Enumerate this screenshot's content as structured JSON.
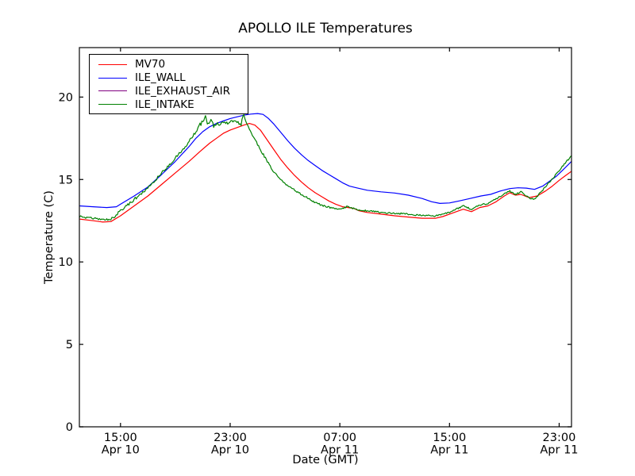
{
  "chart_data": {
    "type": "line",
    "title": "APOLLO ILE Temperatures",
    "xlabel": "Date (GMT)",
    "ylabel": "Temperature (C)",
    "grid": false,
    "legend_position": "upper left",
    "ylim": [
      0,
      23
    ],
    "y_ticks": [
      0,
      5,
      10,
      15,
      20
    ],
    "x_unit": "hours since Apr 10 12:00 GMT",
    "xlim": [
      0,
      35.9
    ],
    "x_ticks": [
      {
        "t": 3,
        "time": "15:00",
        "date": "Apr 10"
      },
      {
        "t": 11,
        "time": "23:00",
        "date": "Apr 10"
      },
      {
        "t": 19,
        "time": "07:00",
        "date": "Apr 11"
      },
      {
        "t": 27,
        "time": "15:00",
        "date": "Apr 11"
      },
      {
        "t": 35,
        "time": "23:00",
        "date": "Apr 11"
      }
    ],
    "series": [
      {
        "name": "MV70",
        "color": "#ff0000",
        "noisy": false,
        "points": [
          [
            0,
            12.6
          ],
          [
            1,
            12.5
          ],
          [
            1.7,
            12.42
          ],
          [
            2.3,
            12.45
          ],
          [
            3,
            12.8
          ],
          [
            4,
            13.4
          ],
          [
            5,
            14.0
          ],
          [
            6,
            14.7
          ],
          [
            7,
            15.4
          ],
          [
            8,
            16.1
          ],
          [
            8.8,
            16.7
          ],
          [
            9.5,
            17.2
          ],
          [
            10,
            17.5
          ],
          [
            10.5,
            17.8
          ],
          [
            11,
            18.0
          ],
          [
            11.5,
            18.15
          ],
          [
            12,
            18.3
          ],
          [
            12.4,
            18.4
          ],
          [
            12.8,
            18.3
          ],
          [
            13.2,
            18.0
          ],
          [
            13.7,
            17.4
          ],
          [
            14.2,
            16.8
          ],
          [
            14.7,
            16.2
          ],
          [
            15.2,
            15.7
          ],
          [
            15.7,
            15.25
          ],
          [
            16.2,
            14.85
          ],
          [
            16.7,
            14.5
          ],
          [
            17.2,
            14.2
          ],
          [
            17.7,
            13.95
          ],
          [
            18.2,
            13.7
          ],
          [
            18.7,
            13.5
          ],
          [
            19.2,
            13.35
          ],
          [
            19.6,
            13.3
          ],
          [
            20,
            13.25
          ],
          [
            20.4,
            13.1
          ],
          [
            21,
            13.0
          ],
          [
            22,
            12.9
          ],
          [
            23,
            12.8
          ],
          [
            24,
            12.72
          ],
          [
            25,
            12.65
          ],
          [
            26,
            12.65
          ],
          [
            26.5,
            12.75
          ],
          [
            27,
            12.9
          ],
          [
            27.5,
            13.05
          ],
          [
            28,
            13.2
          ],
          [
            28.6,
            13.05
          ],
          [
            29.2,
            13.3
          ],
          [
            29.8,
            13.4
          ],
          [
            30.4,
            13.65
          ],
          [
            31,
            14.0
          ],
          [
            31.4,
            14.2
          ],
          [
            31.8,
            14.05
          ],
          [
            32.2,
            14.1
          ],
          [
            32.8,
            13.9
          ],
          [
            33.4,
            14.0
          ],
          [
            34,
            14.3
          ],
          [
            34.5,
            14.6
          ],
          [
            35,
            14.95
          ],
          [
            35.4,
            15.2
          ],
          [
            35.9,
            15.5
          ]
        ]
      },
      {
        "name": "ILE_WALL",
        "color": "#0000ff",
        "noisy": false,
        "points": [
          [
            0,
            13.4
          ],
          [
            1,
            13.35
          ],
          [
            2,
            13.3
          ],
          [
            2.7,
            13.35
          ],
          [
            3,
            13.5
          ],
          [
            4,
            14.0
          ],
          [
            5,
            14.55
          ],
          [
            6,
            15.3
          ],
          [
            7,
            16.1
          ],
          [
            8,
            17.0
          ],
          [
            8.5,
            17.5
          ],
          [
            9,
            17.9
          ],
          [
            9.5,
            18.2
          ],
          [
            10,
            18.4
          ],
          [
            10.5,
            18.55
          ],
          [
            11,
            18.7
          ],
          [
            11.5,
            18.8
          ],
          [
            12,
            18.9
          ],
          [
            12.5,
            18.97
          ],
          [
            13,
            19.0
          ],
          [
            13.4,
            18.95
          ],
          [
            13.8,
            18.7
          ],
          [
            14.2,
            18.35
          ],
          [
            14.7,
            17.85
          ],
          [
            15.2,
            17.35
          ],
          [
            15.7,
            16.9
          ],
          [
            16.2,
            16.5
          ],
          [
            16.7,
            16.15
          ],
          [
            17.2,
            15.85
          ],
          [
            17.7,
            15.55
          ],
          [
            18.2,
            15.3
          ],
          [
            18.7,
            15.05
          ],
          [
            19.2,
            14.8
          ],
          [
            19.7,
            14.6
          ],
          [
            20.2,
            14.5
          ],
          [
            21,
            14.35
          ],
          [
            22,
            14.25
          ],
          [
            23,
            14.18
          ],
          [
            24,
            14.05
          ],
          [
            25,
            13.85
          ],
          [
            25.7,
            13.65
          ],
          [
            26.3,
            13.55
          ],
          [
            27,
            13.58
          ],
          [
            27.7,
            13.7
          ],
          [
            28.5,
            13.85
          ],
          [
            29.3,
            14.0
          ],
          [
            30,
            14.1
          ],
          [
            30.7,
            14.3
          ],
          [
            31.4,
            14.45
          ],
          [
            32,
            14.5
          ],
          [
            32.6,
            14.48
          ],
          [
            33.2,
            14.4
          ],
          [
            33.8,
            14.6
          ],
          [
            34.3,
            14.9
          ],
          [
            34.8,
            15.2
          ],
          [
            35.3,
            15.6
          ],
          [
            35.9,
            16.1
          ]
        ]
      },
      {
        "name": "ILE_EXHAUST_AIR",
        "color": "#800080",
        "noisy": false,
        "points": [],
        "note": "legend entry only - no distinct line visible in the plotted range"
      },
      {
        "name": "ILE_INTAKE",
        "color": "#008000",
        "noisy": true,
        "points": [
          [
            0,
            12.75
          ],
          [
            1,
            12.65
          ],
          [
            1.7,
            12.55
          ],
          [
            2.3,
            12.6
          ],
          [
            3,
            13.1
          ],
          [
            4,
            13.8
          ],
          [
            5,
            14.5
          ],
          [
            5.5,
            14.9
          ],
          [
            6,
            15.4
          ],
          [
            6.5,
            15.8
          ],
          [
            7,
            16.3
          ],
          [
            7.5,
            16.8
          ],
          [
            8,
            17.3
          ],
          [
            8.5,
            17.9
          ],
          [
            8.8,
            18.3
          ],
          [
            9,
            18.5
          ],
          [
            9.2,
            18.9
          ],
          [
            9.4,
            18.3
          ],
          [
            9.6,
            18.6
          ],
          [
            9.8,
            18.3
          ],
          [
            10,
            18.45
          ],
          [
            10.3,
            18.3
          ],
          [
            10.6,
            18.5
          ],
          [
            10.9,
            18.35
          ],
          [
            11.2,
            18.5
          ],
          [
            11.5,
            18.55
          ],
          [
            11.8,
            18.4
          ],
          [
            12,
            19.0
          ],
          [
            12.15,
            18.5
          ],
          [
            12.4,
            18.1
          ],
          [
            12.7,
            17.6
          ],
          [
            13,
            17.1
          ],
          [
            13.5,
            16.4
          ],
          [
            14,
            15.7
          ],
          [
            14.5,
            15.15
          ],
          [
            15,
            14.75
          ],
          [
            15.5,
            14.45
          ],
          [
            16,
            14.2
          ],
          [
            16.5,
            13.95
          ],
          [
            17,
            13.7
          ],
          [
            17.5,
            13.5
          ],
          [
            18,
            13.35
          ],
          [
            18.5,
            13.25
          ],
          [
            19,
            13.2
          ],
          [
            19.5,
            13.35
          ],
          [
            20,
            13.25
          ],
          [
            20.5,
            13.15
          ],
          [
            21,
            13.1
          ],
          [
            22,
            13.0
          ],
          [
            23,
            12.95
          ],
          [
            24,
            12.9
          ],
          [
            25,
            12.82
          ],
          [
            26,
            12.8
          ],
          [
            26.5,
            12.88
          ],
          [
            27,
            13.0
          ],
          [
            27.5,
            13.2
          ],
          [
            28,
            13.4
          ],
          [
            28.6,
            13.2
          ],
          [
            29.2,
            13.45
          ],
          [
            29.8,
            13.55
          ],
          [
            30.4,
            13.8
          ],
          [
            31,
            14.15
          ],
          [
            31.4,
            14.3
          ],
          [
            31.8,
            14.1
          ],
          [
            32.2,
            14.25
          ],
          [
            32.8,
            13.9
          ],
          [
            33.2,
            13.8
          ],
          [
            33.8,
            14.35
          ],
          [
            34.3,
            14.85
          ],
          [
            34.8,
            15.35
          ],
          [
            35.3,
            15.85
          ],
          [
            35.9,
            16.45
          ]
        ]
      }
    ]
  }
}
